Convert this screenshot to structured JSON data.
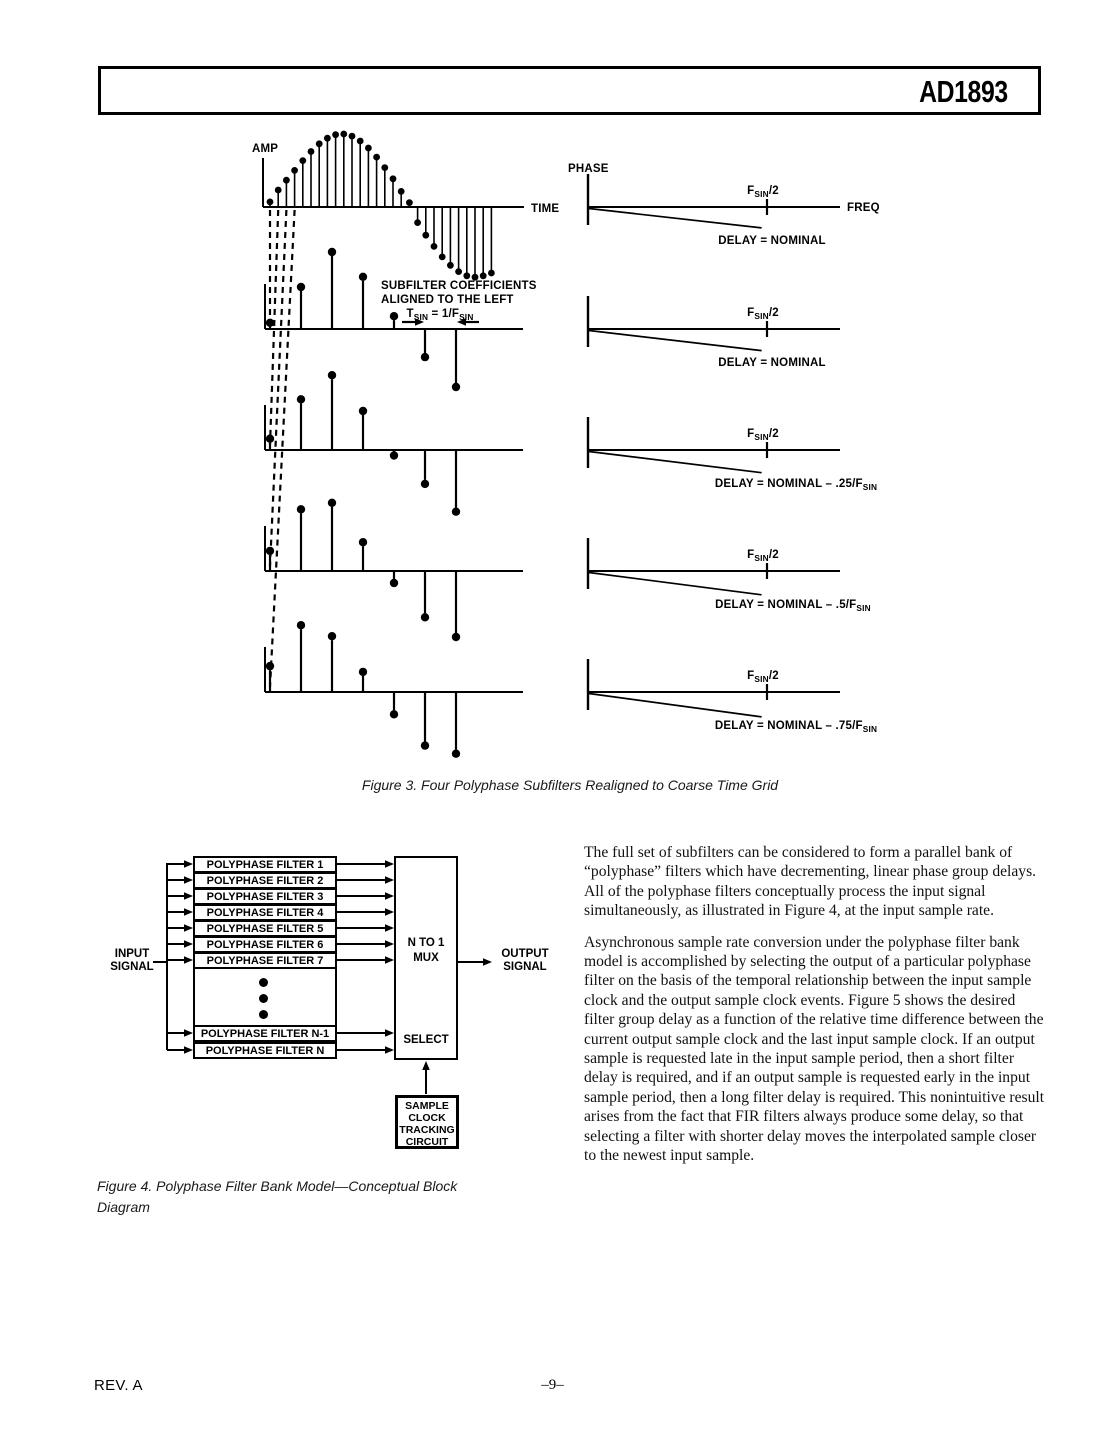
{
  "header": {
    "part_number": "AD1893"
  },
  "figure3": {
    "caption": "Figure 3.  Four Polyphase Subfilters Realigned to Coarse Time Grid",
    "amp_label": "AMP",
    "time_label": "TIME",
    "note_line1": "SUBFILTER COEFFICIENTS",
    "note_line2": "ALIGNED TO THE LEFT",
    "tsin_label": "T~SIN~ = 1/F~SIN~"
  },
  "chart_data": [
    {
      "type": "stem",
      "title": "Input signal samples",
      "xlabel": "TIME",
      "ylabel": "AMP",
      "values": [
        0.03,
        0.2,
        0.34,
        0.48,
        0.62,
        0.75,
        0.86,
        0.94,
        0.99,
        1.0,
        0.97,
        0.9,
        0.8,
        0.67,
        0.52,
        0.36,
        0.18,
        0.02,
        -0.18,
        -0.36,
        -0.52,
        -0.67,
        -0.79,
        -0.88,
        -0.94,
        -0.96,
        -0.94,
        -0.9
      ]
    },
    {
      "type": "stem",
      "title": "Polyphase subfilter 1 coefficients (delay = nominal)",
      "values": [
        0.03,
        0.52,
        1.0,
        0.66,
        0.12,
        -0.33,
        -0.74
      ]
    },
    {
      "type": "stem",
      "title": "Polyphase subfilter 2 coefficients (delay = nominal - .25/FSIN)",
      "values": [
        0.1,
        0.64,
        0.97,
        0.48,
        -0.02,
        -0.41,
        -0.79
      ]
    },
    {
      "type": "stem",
      "title": "Polyphase subfilter 3 coefficients (delay = nominal - .5/FSIN)",
      "values": [
        0.22,
        0.79,
        0.88,
        0.34,
        -0.11,
        -0.58,
        -0.85
      ]
    },
    {
      "type": "stem",
      "title": "Polyphase subfilter 4 coefficients (delay = nominal - .75/FSIN)",
      "values": [
        0.3,
        0.86,
        0.71,
        0.22,
        -0.25,
        -0.68,
        -0.79
      ]
    },
    {
      "type": "line",
      "title": "Phase response - input signal",
      "xlabel": "FREQ",
      "ylabel": "PHASE",
      "x_tick_label": "F~SIN~/2",
      "x_tick_pos": 0.5,
      "x": [
        0,
        0.485
      ],
      "y": [
        0,
        -0.095
      ],
      "annotation": "DELAY = NOMINAL"
    },
    {
      "type": "line",
      "title": "Phase response - subfilter 1",
      "xlabel": "FREQ",
      "ylabel": "PHASE",
      "x_tick_label": "F~SIN~/2",
      "x_tick_pos": 0.5,
      "x": [
        0,
        0.485
      ],
      "y": [
        0,
        -0.098
      ],
      "annotation": "DELAY = NOMINAL"
    },
    {
      "type": "line",
      "title": "Phase response - subfilter 2",
      "xlabel": "FREQ",
      "ylabel": "PHASE",
      "x_tick_label": "F~SIN~/2",
      "x_tick_pos": 0.5,
      "x": [
        0,
        0.485
      ],
      "y": [
        0,
        -0.103
      ],
      "annotation": "DELAY = NOMINAL – .25/F~SIN~"
    },
    {
      "type": "line",
      "title": "Phase response - subfilter 3",
      "xlabel": "FREQ",
      "ylabel": "PHASE",
      "x_tick_label": "F~SIN~/2",
      "x_tick_pos": 0.5,
      "x": [
        0,
        0.485
      ],
      "y": [
        0,
        -0.108
      ],
      "annotation": "DELAY = NOMINAL – .5/F~SIN~"
    },
    {
      "type": "line",
      "title": "Phase response - subfilter 4",
      "xlabel": "FREQ",
      "ylabel": "PHASE",
      "x_tick_label": "F~SIN~/2",
      "x_tick_pos": 0.5,
      "x": [
        0,
        0.485
      ],
      "y": [
        0,
        -0.113
      ],
      "annotation": "DELAY = NOMINAL – .75/F~SIN~"
    }
  ],
  "figure4": {
    "caption_line1": "Figure 4.  Polyphase Filter Bank Model—Conceptual Block",
    "caption_line2": "Diagram",
    "input_label_line1": "INPUT",
    "input_label_line2": "SIGNAL",
    "output_label_line1": "OUTPUT",
    "output_label_line2": "SIGNAL",
    "mux_label_line1": "N TO 1",
    "mux_label_line2": "MUX",
    "select_label": "SELECT",
    "tracking_box_lines": [
      "SAMPLE",
      "CLOCK",
      "TRACKING",
      "CIRCUIT"
    ],
    "filters": [
      "POLYPHASE FILTER 1",
      "POLYPHASE FILTER 2",
      "POLYPHASE FILTER 3",
      "POLYPHASE FILTER 4",
      "POLYPHASE FILTER 5",
      "POLYPHASE FILTER 6",
      "POLYPHASE FILTER 7",
      "POLYPHASE FILTER N-1",
      "POLYPHASE FILTER N"
    ]
  },
  "body_text": {
    "paragraph1": "The full set of subfilters can be considered to form a parallel bank of “polyphase” filters which have decrementing, linear phase group delays. All of the polyphase filters conceptually process the input signal simultaneously, as illustrated in Figure 4, at the input sample rate.",
    "paragraph2": "Asynchronous sample rate conversion under the polyphase filter bank model is accomplished by selecting the output of a particular polyphase filter on the basis of the temporal relationship between the input sample clock and the output sample clock events. Figure 5 shows the desired filter group delay as a function of the relative time difference between the current output sample clock and the last input sample clock. If an output sample is requested late in the input sample period, then a short filter delay is required, and if an output sample is requested early in the input sample period, then a long filter delay is required. This nonintuitive result arises from the fact that FIR filters always produce some delay, so that selecting a filter with shorter delay moves the interpolated sample closer to the newest input sample."
  },
  "footer": {
    "revision": "REV. A",
    "page_number": "–9–"
  }
}
